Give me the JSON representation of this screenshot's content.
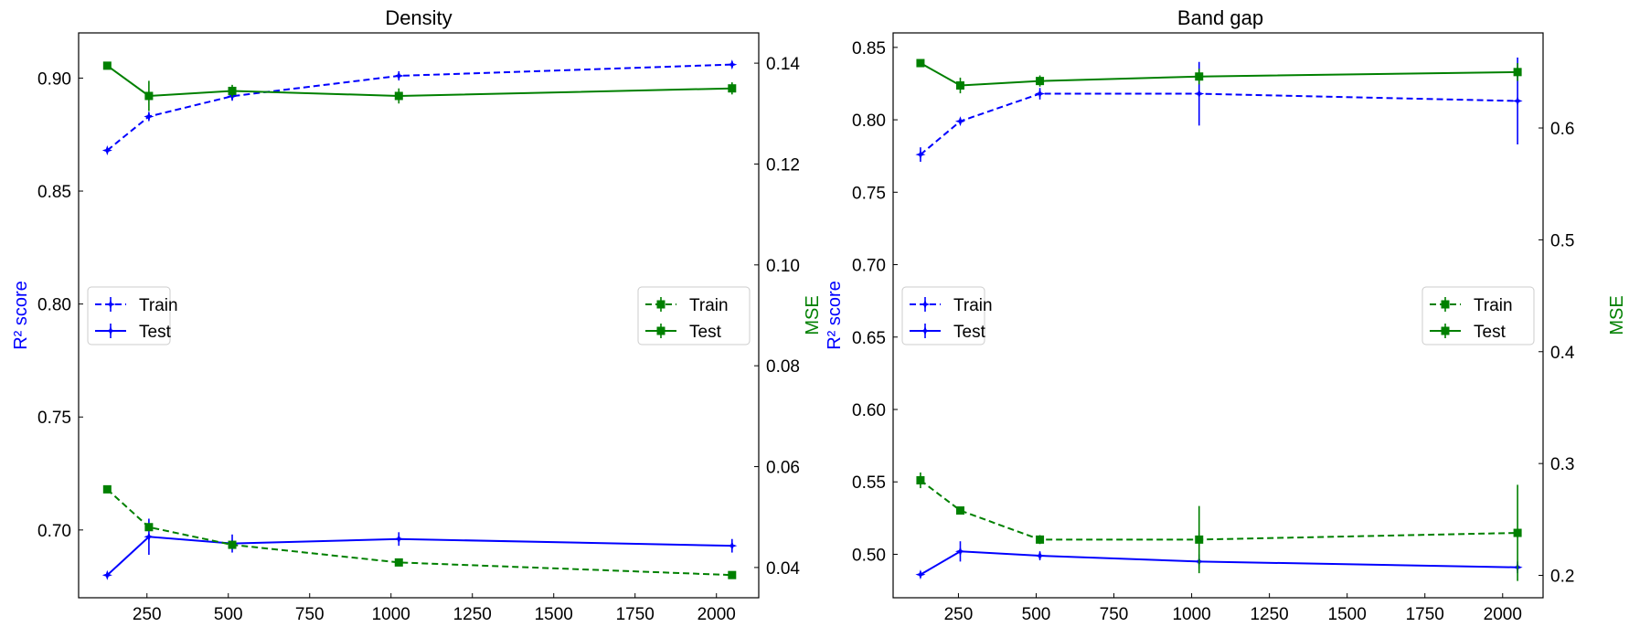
{
  "colors": {
    "r2": "#0000ff",
    "mse": "#008000"
  },
  "chart_data": [
    {
      "type": "line",
      "title": "Density",
      "xlabel": "",
      "ylabel_left": "R² score",
      "ylabel_right": "MSE",
      "xlim": [
        40,
        2130
      ],
      "ylim_left": [
        0.67,
        0.92
      ],
      "ylim_right": [
        0.034,
        0.146
      ],
      "xticks": [
        250,
        500,
        750,
        1000,
        1250,
        1500,
        1750,
        2000
      ],
      "yticks_left": [
        0.7,
        0.75,
        0.8,
        0.85,
        0.9
      ],
      "ytick_labels_left": [
        "0.70",
        "0.75",
        "0.80",
        "0.85",
        "0.90"
      ],
      "yticks_right": [
        0.04,
        0.06,
        0.08,
        0.1,
        0.12,
        0.14
      ],
      "ytick_labels_right": [
        "0.04",
        "0.06",
        "0.08",
        "0.10",
        "0.12",
        "0.14"
      ],
      "legend_left": {
        "placement": "center-left",
        "entries": [
          "Train",
          "Test"
        ]
      },
      "legend_right": {
        "placement": "center-right",
        "entries": [
          "Train",
          "Test"
        ]
      },
      "series": [
        {
          "name": "Train",
          "axis": "left",
          "metric": "R2",
          "style": "dashed",
          "marker": "star",
          "x": [
            128,
            256,
            512,
            1024,
            2048
          ],
          "y": [
            0.868,
            0.883,
            0.892,
            0.901,
            0.906
          ],
          "err": [
            0.001,
            0.002,
            0.002,
            0.002,
            0.0015
          ]
        },
        {
          "name": "Test",
          "axis": "left",
          "metric": "R2",
          "style": "solid",
          "marker": "star",
          "x": [
            128,
            256,
            512,
            1024,
            2048
          ],
          "y": [
            0.68,
            0.697,
            0.694,
            0.696,
            0.693
          ],
          "err": [
            0.001,
            0.008,
            0.004,
            0.003,
            0.003
          ]
        },
        {
          "name": "Train",
          "axis": "right",
          "metric": "MSE",
          "style": "dashed",
          "marker": "square",
          "x": [
            128,
            256,
            512,
            1024,
            2048
          ],
          "y": [
            0.0555,
            0.048,
            0.0445,
            0.041,
            0.0385
          ],
          "err": [
            0.0004,
            0.0004,
            0.0005,
            0.0006,
            0.0005
          ]
        },
        {
          "name": "Test",
          "axis": "right",
          "metric": "MSE",
          "style": "solid",
          "marker": "square",
          "x": [
            128,
            256,
            512,
            1024,
            2048
          ],
          "y": [
            0.1395,
            0.1335,
            0.1345,
            0.1335,
            0.135
          ],
          "err": [
            0.0005,
            0.003,
            0.0012,
            0.0015,
            0.0012
          ]
        }
      ]
    },
    {
      "type": "line",
      "title": "Band gap",
      "xlabel": "",
      "ylabel_left": "R² score",
      "ylabel_right": "MSE",
      "xlim": [
        40,
        2130
      ],
      "ylim_left": [
        0.47,
        0.86
      ],
      "ylim_right": [
        0.18,
        0.685
      ],
      "xticks": [
        250,
        500,
        750,
        1000,
        1250,
        1500,
        1750,
        2000
      ],
      "yticks_left": [
        0.5,
        0.55,
        0.6,
        0.65,
        0.7,
        0.75,
        0.8,
        0.85
      ],
      "ytick_labels_left": [
        "0.50",
        "0.55",
        "0.60",
        "0.65",
        "0.70",
        "0.75",
        "0.80",
        "0.85"
      ],
      "yticks_right": [
        0.2,
        0.3,
        0.4,
        0.5,
        0.6
      ],
      "ytick_labels_right": [
        "0.2",
        "0.3",
        "0.4",
        "0.5",
        "0.6"
      ],
      "legend_left": {
        "placement": "center-left",
        "entries": [
          "Train",
          "Test"
        ]
      },
      "legend_right": {
        "placement": "center-right",
        "entries": [
          "Train",
          "Test"
        ]
      },
      "series": [
        {
          "name": "Train",
          "axis": "left",
          "metric": "R2",
          "style": "dashed",
          "marker": "star",
          "x": [
            128,
            256,
            512,
            1024,
            2048
          ],
          "y": [
            0.776,
            0.799,
            0.818,
            0.818,
            0.813
          ],
          "err": [
            0.005,
            0.002,
            0.004,
            0.022,
            0.03
          ]
        },
        {
          "name": "Test",
          "axis": "left",
          "metric": "R2",
          "style": "solid",
          "marker": "star",
          "x": [
            128,
            256,
            512,
            1024,
            2048
          ],
          "y": [
            0.486,
            0.502,
            0.499,
            0.495,
            0.491
          ],
          "err": [
            0.002,
            0.007,
            0.003,
            0.005,
            0.004
          ]
        },
        {
          "name": "Train",
          "axis": "right",
          "metric": "MSE",
          "style": "dashed",
          "marker": "square",
          "x": [
            128,
            256,
            512,
            1024,
            2048
          ],
          "y": [
            0.285,
            0.258,
            0.232,
            0.232,
            0.238
          ],
          "err": [
            0.007,
            0.003,
            0.004,
            0.03,
            0.043
          ]
        },
        {
          "name": "Test",
          "axis": "right",
          "metric": "MSE",
          "style": "solid",
          "marker": "square",
          "x": [
            128,
            256,
            512,
            1024,
            2048
          ],
          "y": [
            0.658,
            0.638,
            0.642,
            0.646,
            0.65
          ],
          "err": [
            0.003,
            0.007,
            0.005,
            0.007,
            0.008
          ]
        }
      ]
    }
  ]
}
